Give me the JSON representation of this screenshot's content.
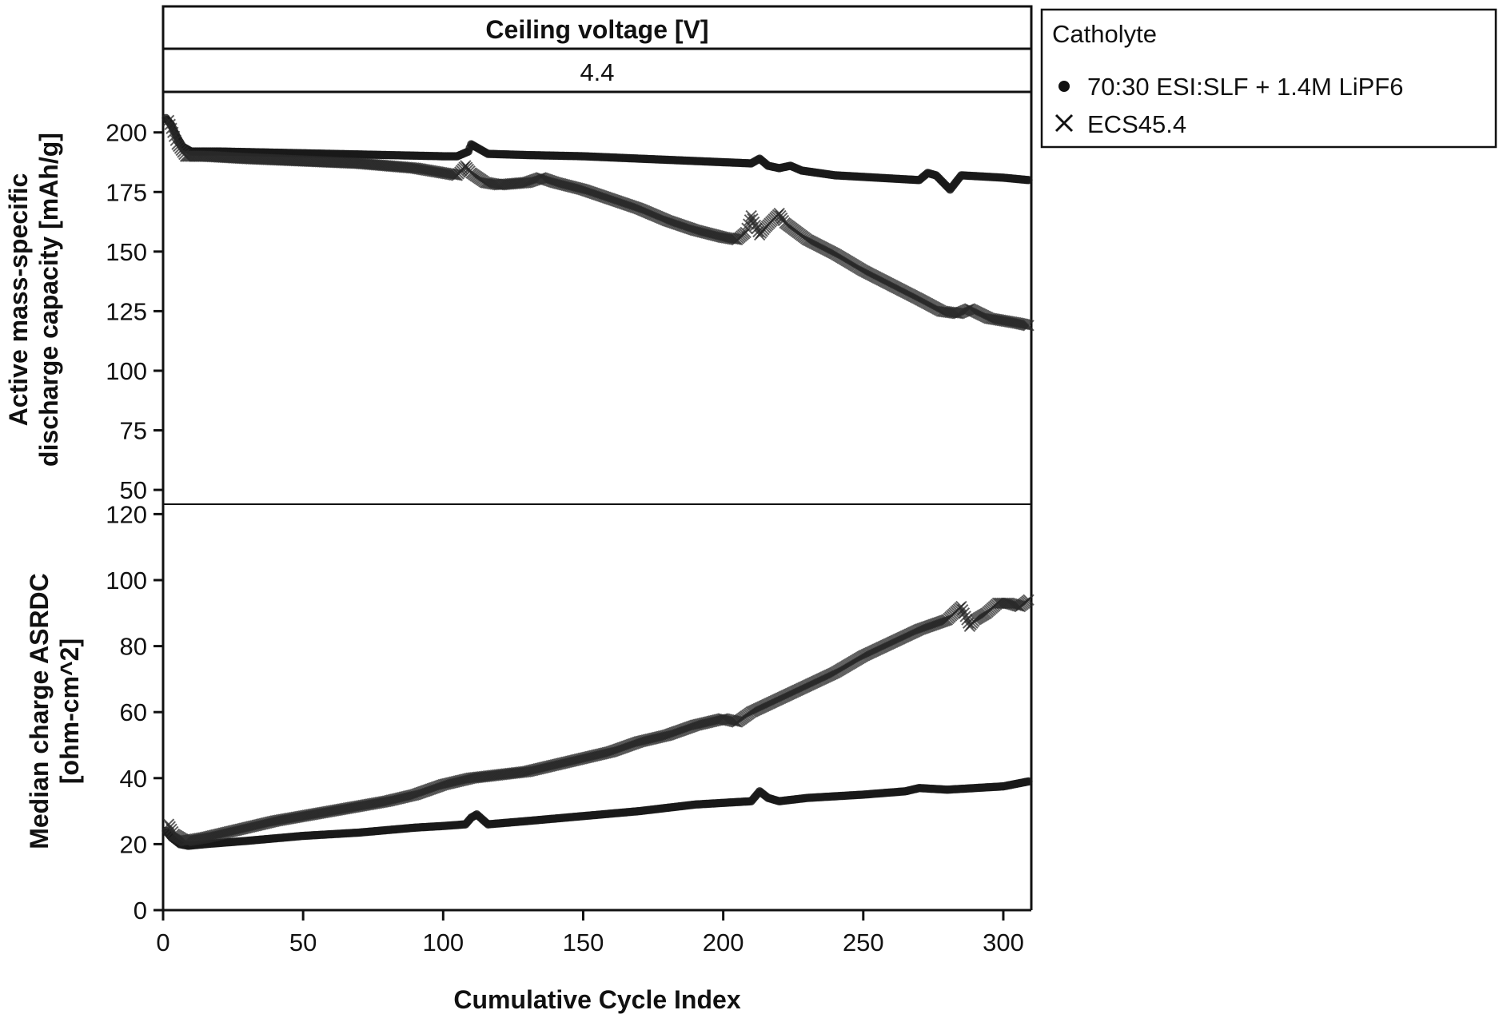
{
  "facet": {
    "header": "Ceiling voltage [V]",
    "value": "4.4"
  },
  "legend": {
    "title": "Catholyte",
    "items": [
      {
        "label": "70:30 ESI:SLF + 1.4M LiPF6",
        "marker": "circle"
      },
      {
        "label": "ECS45.4",
        "marker": "cross"
      }
    ]
  },
  "x_axis": {
    "title": "Cumulative Cycle Index",
    "ticks": [
      "0",
      "50",
      "100",
      "150",
      "200",
      "250",
      "300"
    ]
  },
  "top_panel": {
    "y_title_line1": "Active mass-specific",
    "y_title_line2": "discharge capacity [mAh/g]",
    "ticks": [
      "50",
      "75",
      "100",
      "125",
      "150",
      "175",
      "200"
    ]
  },
  "bottom_panel": {
    "y_title_line1": "Median charge ASRDC",
    "y_title_line2": "[ohm-cm^2]",
    "ticks": [
      "0",
      "20",
      "40",
      "60",
      "80",
      "100",
      "120"
    ]
  },
  "colors": {
    "ink": "#111111",
    "series_marker": "#333333"
  },
  "chart_data": [
    {
      "type": "scatter",
      "panel": "top",
      "title": "4.4",
      "xlabel": "Cumulative Cycle Index",
      "ylabel": "Active mass-specific discharge capacity [mAh/g]",
      "xlim": [
        0,
        310
      ],
      "ylim": [
        44,
        217
      ],
      "grid": false,
      "legend_position": "outside-right",
      "series": [
        {
          "name": "70:30 ESI:SLF + 1.4M LiPF6",
          "marker": "circle",
          "points": [
            [
              1,
              206
            ],
            [
              3,
              203
            ],
            [
              5,
              198
            ],
            [
              7,
              194
            ],
            [
              10,
              192
            ],
            [
              20,
              192
            ],
            [
              40,
              191.5
            ],
            [
              60,
              191
            ],
            [
              80,
              190.5
            ],
            [
              100,
              190
            ],
            [
              105,
              190
            ],
            [
              109,
              192
            ],
            [
              110,
              195
            ],
            [
              113,
              193
            ],
            [
              116,
              191
            ],
            [
              130,
              190.5
            ],
            [
              150,
              190
            ],
            [
              170,
              189
            ],
            [
              190,
              188
            ],
            [
              200,
              187.5
            ],
            [
              210,
              187
            ],
            [
              213,
              189
            ],
            [
              216,
              186
            ],
            [
              220,
              185
            ],
            [
              224,
              186
            ],
            [
              228,
              184
            ],
            [
              240,
              182
            ],
            [
              255,
              181
            ],
            [
              270,
              180
            ],
            [
              273,
              183
            ],
            [
              276,
              182
            ],
            [
              281,
              176
            ],
            [
              285,
              182
            ],
            [
              300,
              181
            ],
            [
              309,
              180
            ]
          ]
        },
        {
          "name": "ECS45.4",
          "marker": "cross",
          "points": [
            [
              2,
              205
            ],
            [
              5,
              195
            ],
            [
              8,
              190
            ],
            [
              15,
              190
            ],
            [
              30,
              189
            ],
            [
              50,
              188
            ],
            [
              70,
              187
            ],
            [
              90,
              185
            ],
            [
              100,
              183
            ],
            [
              105,
              182
            ],
            [
              108,
              186
            ],
            [
              110,
              183
            ],
            [
              115,
              179
            ],
            [
              120,
              178
            ],
            [
              130,
              179
            ],
            [
              135,
              181
            ],
            [
              140,
              179
            ],
            [
              150,
              176
            ],
            [
              160,
              172
            ],
            [
              170,
              168
            ],
            [
              180,
              163
            ],
            [
              190,
              159
            ],
            [
              200,
              156
            ],
            [
              205,
              155
            ],
            [
              208,
              158
            ],
            [
              210,
              165
            ],
            [
              213,
              157
            ],
            [
              215,
              160
            ],
            [
              220,
              166
            ],
            [
              222,
              162
            ],
            [
              230,
              155
            ],
            [
              240,
              149
            ],
            [
              250,
              142
            ],
            [
              260,
              136
            ],
            [
              270,
              130
            ],
            [
              278,
              125
            ],
            [
              284,
              124
            ],
            [
              288,
              126
            ],
            [
              295,
              122
            ],
            [
              300,
              121
            ],
            [
              305,
              120
            ],
            [
              309,
              119
            ]
          ]
        }
      ]
    },
    {
      "type": "scatter",
      "panel": "bottom",
      "xlabel": "Cumulative Cycle Index",
      "ylabel": "Median charge ASRDC [ohm-cm^2]",
      "xlim": [
        0,
        310
      ],
      "ylim": [
        0,
        123
      ],
      "grid": false,
      "series": [
        {
          "name": "70:30 ESI:SLF + 1.4M LiPF6",
          "marker": "circle",
          "points": [
            [
              1,
              24
            ],
            [
              3,
              22
            ],
            [
              6,
              20
            ],
            [
              9,
              19.5
            ],
            [
              15,
              20
            ],
            [
              30,
              21
            ],
            [
              50,
              22.5
            ],
            [
              70,
              23.5
            ],
            [
              90,
              25
            ],
            [
              100,
              25.5
            ],
            [
              108,
              26
            ],
            [
              110,
              28
            ],
            [
              112,
              29
            ],
            [
              116,
              26
            ],
            [
              130,
              27
            ],
            [
              150,
              28.5
            ],
            [
              170,
              30
            ],
            [
              190,
              32
            ],
            [
              200,
              32.5
            ],
            [
              210,
              33
            ],
            [
              213,
              36
            ],
            [
              216,
              34
            ],
            [
              220,
              33
            ],
            [
              230,
              34
            ],
            [
              250,
              35
            ],
            [
              265,
              36
            ],
            [
              270,
              37
            ],
            [
              280,
              36.5
            ],
            [
              300,
              37.5
            ],
            [
              309,
              39
            ]
          ]
        },
        {
          "name": "ECS45.4",
          "marker": "cross",
          "points": [
            [
              2,
              26
            ],
            [
              4,
              23
            ],
            [
              8,
              21
            ],
            [
              15,
              22
            ],
            [
              25,
              24
            ],
            [
              40,
              27
            ],
            [
              60,
              30
            ],
            [
              80,
              33
            ],
            [
              90,
              35
            ],
            [
              100,
              38
            ],
            [
              110,
              40
            ],
            [
              120,
              41
            ],
            [
              130,
              42
            ],
            [
              140,
              44
            ],
            [
              150,
              46
            ],
            [
              160,
              48
            ],
            [
              170,
              51
            ],
            [
              180,
              53
            ],
            [
              190,
              56
            ],
            [
              200,
              58
            ],
            [
              205,
              57
            ],
            [
              210,
              60
            ],
            [
              215,
              62
            ],
            [
              220,
              64
            ],
            [
              230,
              68
            ],
            [
              240,
              72
            ],
            [
              250,
              77
            ],
            [
              260,
              81
            ],
            [
              270,
              85
            ],
            [
              280,
              88
            ],
            [
              285,
              92
            ],
            [
              288,
              86
            ],
            [
              290,
              88
            ],
            [
              294,
              90
            ],
            [
              298,
              93
            ],
            [
              302,
              93
            ],
            [
              306,
              92
            ],
            [
              309,
              94
            ]
          ]
        }
      ]
    }
  ]
}
